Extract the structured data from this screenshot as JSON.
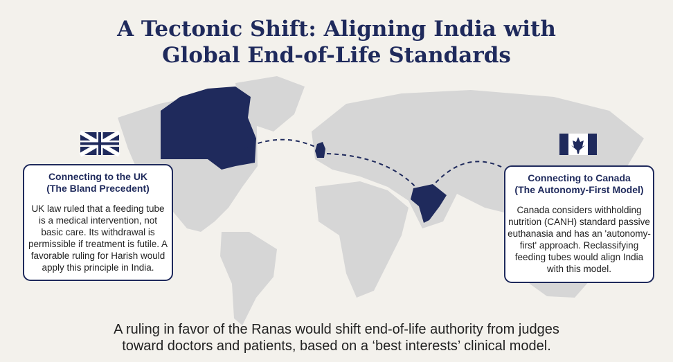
{
  "title": [
    "A Tectonic Shift: Aligning India with",
    "Global End-of-Life Standards"
  ],
  "uk_card": {
    "title": [
      "Connecting to the UK",
      "(The Bland Precedent)"
    ],
    "body": [
      "UK law ruled that a feeding tube",
      "is a medical intervention, not",
      "basic care. Its withdrawal is",
      "permissible if treatment is futile. A",
      "favorable ruling for Harish would",
      "apply this principle in India."
    ]
  },
  "canada_card": {
    "title": [
      "Connecting to Canada",
      "(The Autonomy-First Model)"
    ],
    "body": [
      "Canada considers withholding",
      "nutrition (CANH) standard passive",
      "euthanasia and has an 'autonomy-",
      "first' approach. Reclassifying",
      "feeding tubes would align India",
      "with this model."
    ]
  },
  "footer": [
    "A ruling in favor of the Ranas would shift end-of-life authority from judges",
    "toward doctors and patients, based on a ‘best interests’ clinical model."
  ]
}
